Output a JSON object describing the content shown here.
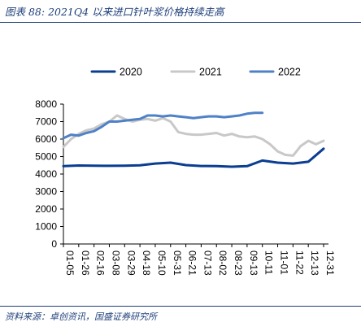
{
  "header": {
    "title": "图表 88:  2021Q4 以来进口针叶浆价格持续走高"
  },
  "footer": {
    "source": "资料来源：卓创资讯，国盛证券研究所"
  },
  "colors": {
    "s2020": "#0b3d91",
    "s2021": "#c8c8c8",
    "s2022": "#4f81c7",
    "frame": "#1f3f7a"
  },
  "chart_data": {
    "type": "line",
    "title": "",
    "xlabel": "",
    "ylabel": "",
    "ylim": [
      0,
      8000
    ],
    "yticks": [
      "0",
      "1000",
      "2000",
      "3000",
      "4000",
      "5000",
      "6000",
      "7000",
      "8000"
    ],
    "xtick_labels": [
      "01-05",
      "01-26",
      "02-16",
      "03-08",
      "03-29",
      "04-18",
      "05-10",
      "05-31",
      "06-21",
      "07-13",
      "08-02",
      "08-23",
      "09-13",
      "10-11",
      "11-01",
      "11-22",
      "12-13",
      "12-31"
    ],
    "legend_position": "top",
    "grid": false,
    "series": [
      {
        "name": "2020",
        "color_key": "s2020",
        "x": [
          0,
          1,
          2,
          3,
          4,
          5,
          6,
          7,
          8,
          9,
          10,
          11,
          12,
          13,
          14,
          15,
          16,
          17
        ],
        "values": [
          4450,
          4490,
          4480,
          4470,
          4480,
          4500,
          4600,
          4650,
          4510,
          4460,
          4450,
          4420,
          4450,
          4770,
          4650,
          4600,
          4700,
          5450
        ]
      },
      {
        "name": "2021",
        "color_key": "s2021",
        "x": [
          0,
          0.5,
          1,
          1.5,
          2,
          2.5,
          3,
          3.5,
          4,
          4.5,
          5,
          5.5,
          6,
          6.5,
          7,
          7.5,
          8,
          8.5,
          9,
          9.5,
          10,
          10.5,
          11,
          11.5,
          12,
          12.5,
          13,
          13.5,
          14,
          14.5,
          15,
          15.5,
          16,
          16.5,
          17
        ],
        "values": [
          5550,
          6000,
          6300,
          6500,
          6600,
          6850,
          7000,
          7350,
          7150,
          7000,
          7100,
          7150,
          7050,
          7200,
          7000,
          6400,
          6300,
          6250,
          6250,
          6300,
          6350,
          6200,
          6300,
          6150,
          6100,
          6150,
          6000,
          5700,
          5300,
          5100,
          5050,
          5600,
          5900,
          5700,
          5900
        ]
      },
      {
        "name": "2022",
        "color_key": "s2022",
        "x": [
          0,
          0.5,
          1,
          1.5,
          2,
          2.5,
          3,
          3.5,
          4,
          4.5,
          5,
          5.5,
          6,
          6.5,
          7,
          7.5,
          8,
          8.5,
          9,
          9.5,
          10,
          10.5,
          11,
          11.5,
          12,
          12.5,
          13
        ],
        "values": [
          6050,
          6250,
          6200,
          6350,
          6450,
          6700,
          7000,
          7000,
          7050,
          7100,
          7150,
          7350,
          7350,
          7300,
          7350,
          7300,
          7250,
          7200,
          7250,
          7300,
          7300,
          7250,
          7300,
          7350,
          7450,
          7500,
          7500
        ]
      }
    ]
  }
}
